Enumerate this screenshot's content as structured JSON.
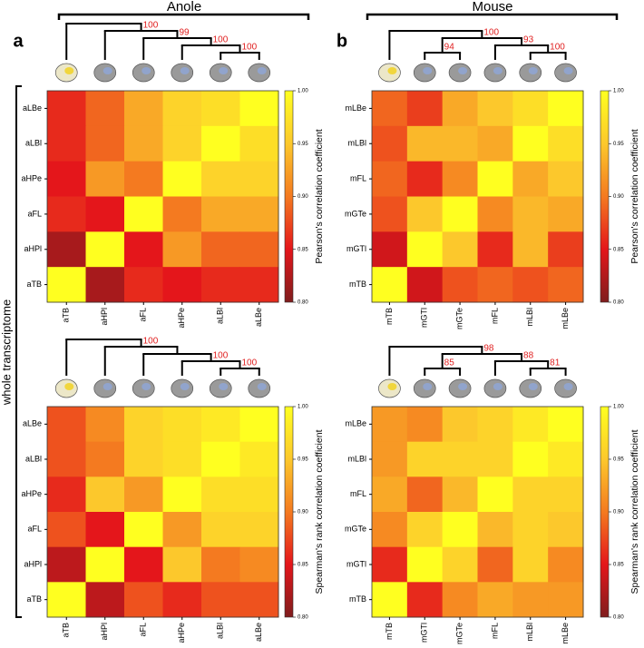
{
  "panels": [
    {
      "letter": "a",
      "title": "Anole"
    },
    {
      "letter": "b",
      "title": "Mouse"
    }
  ],
  "row_label": "whole transcriptome",
  "chart_data": [
    {
      "type": "heatmap",
      "x": [
        "aTB",
        "aHPl",
        "aFL",
        "aHPe",
        "aLBl",
        "aLBe"
      ],
      "y": [
        "aLBe",
        "aLBl",
        "aHPe",
        "aFL",
        "aHPl",
        "aTB"
      ],
      "values": [
        [
          0.86,
          0.89,
          0.93,
          0.96,
          0.97,
          1.0
        ],
        [
          0.86,
          0.89,
          0.93,
          0.96,
          1.0,
          0.97
        ],
        [
          0.85,
          0.92,
          0.9,
          1.0,
          0.96,
          0.96
        ],
        [
          0.86,
          0.85,
          1.0,
          0.9,
          0.93,
          0.93
        ],
        [
          0.82,
          1.0,
          0.85,
          0.92,
          0.89,
          0.89
        ],
        [
          1.0,
          0.82,
          0.86,
          0.85,
          0.86,
          0.86
        ]
      ],
      "zlim": [
        0.8,
        1.0
      ],
      "zticks": [
        {
          "value": 0.8,
          "label": "0.80"
        },
        {
          "value": 0.85,
          "label": "0.85"
        },
        {
          "value": 0.9,
          "label": "0.90"
        },
        {
          "value": 0.95,
          "label": "0.95"
        },
        {
          "value": 1.0,
          "label": "1.00"
        }
      ],
      "colormap": [
        "#7f1d1d",
        "#e4161b",
        "#f47a20",
        "#fcc82c",
        "#ffff20"
      ],
      "colorbar_label": "Pearson's correlation coefficient",
      "tree_support": [
        100,
        99,
        100,
        100
      ]
    },
    {
      "type": "heatmap",
      "x": [
        "mTB",
        "mGTl",
        "mGTe",
        "mFL",
        "mLBl",
        "mLBe"
      ],
      "y": [
        "mLBe",
        "mLBl",
        "mFL",
        "mGTe",
        "mGTl",
        "mTB"
      ],
      "values": [
        [
          0.89,
          0.87,
          0.93,
          0.95,
          0.97,
          1.0
        ],
        [
          0.88,
          0.94,
          0.94,
          0.93,
          1.0,
          0.97
        ],
        [
          0.89,
          0.86,
          0.91,
          1.0,
          0.93,
          0.95
        ],
        [
          0.88,
          0.95,
          1.0,
          0.91,
          0.94,
          0.93
        ],
        [
          0.84,
          1.0,
          0.95,
          0.86,
          0.94,
          0.87
        ],
        [
          1.0,
          0.84,
          0.88,
          0.89,
          0.88,
          0.89
        ]
      ],
      "zlim": [
        0.8,
        1.0
      ],
      "zticks": [
        {
          "value": 0.8,
          "label": "0.80"
        },
        {
          "value": 0.85,
          "label": "0.85"
        },
        {
          "value": 0.9,
          "label": "0.90"
        },
        {
          "value": 0.95,
          "label": "0.95"
        },
        {
          "value": 1.0,
          "label": "1.00"
        }
      ],
      "colormap": [
        "#7f1d1d",
        "#e4161b",
        "#f47a20",
        "#fcc82c",
        "#ffff20"
      ],
      "colorbar_label": "Pearson's correlation coefficient",
      "tree_support": [
        94,
        100,
        93,
        100
      ]
    },
    {
      "type": "heatmap",
      "x": [
        "aTB",
        "aHPl",
        "aFL",
        "aHPe",
        "aLBl",
        "aLBe"
      ],
      "y": [
        "aLBe",
        "aLBl",
        "aHPe",
        "aFL",
        "aHPl",
        "aTB"
      ],
      "values": [
        [
          0.88,
          0.91,
          0.96,
          0.97,
          0.98,
          1.0
        ],
        [
          0.88,
          0.9,
          0.96,
          0.97,
          1.0,
          0.98
        ],
        [
          0.86,
          0.95,
          0.92,
          1.0,
          0.97,
          0.97
        ],
        [
          0.88,
          0.85,
          1.0,
          0.92,
          0.96,
          0.96
        ],
        [
          0.83,
          1.0,
          0.85,
          0.95,
          0.9,
          0.91
        ],
        [
          1.0,
          0.83,
          0.88,
          0.86,
          0.88,
          0.88
        ]
      ],
      "zlim": [
        0.8,
        1.0
      ],
      "zticks": [
        {
          "value": 0.8,
          "label": "0.80"
        },
        {
          "value": 0.85,
          "label": "0.85"
        },
        {
          "value": 0.9,
          "label": "0.90"
        },
        {
          "value": 0.95,
          "label": "0.95"
        },
        {
          "value": 1.0,
          "label": "1.00"
        }
      ],
      "colormap": [
        "#7f1d1d",
        "#e4161b",
        "#f47a20",
        "#fcc82c",
        "#ffff20"
      ],
      "colorbar_label": "Spearman's rank correlation coefficient",
      "tree_support": [
        100,
        100,
        100
      ]
    },
    {
      "type": "heatmap",
      "x": [
        "mTB",
        "mGTl",
        "mGTe",
        "mFL",
        "mLBl",
        "mLBe"
      ],
      "y": [
        "mLBe",
        "mLBl",
        "mFL",
        "mGTe",
        "mGTl",
        "mTB"
      ],
      "values": [
        [
          0.92,
          0.91,
          0.95,
          0.96,
          0.98,
          1.0
        ],
        [
          0.92,
          0.96,
          0.96,
          0.96,
          1.0,
          0.98
        ],
        [
          0.93,
          0.89,
          0.94,
          1.0,
          0.96,
          0.96
        ],
        [
          0.91,
          0.96,
          1.0,
          0.94,
          0.96,
          0.95
        ],
        [
          0.86,
          1.0,
          0.96,
          0.89,
          0.96,
          0.91
        ],
        [
          1.0,
          0.86,
          0.91,
          0.93,
          0.92,
          0.92
        ]
      ],
      "zlim": [
        0.8,
        1.0
      ],
      "zticks": [
        {
          "value": 0.8,
          "label": "0.80"
        },
        {
          "value": 0.85,
          "label": "0.85"
        },
        {
          "value": 0.9,
          "label": "0.90"
        },
        {
          "value": 0.95,
          "label": "0.95"
        },
        {
          "value": 1.0,
          "label": "1.00"
        }
      ],
      "colormap": [
        "#7f1d1d",
        "#e4161b",
        "#f47a20",
        "#fcc82c",
        "#ffff20"
      ],
      "colorbar_label": "Spearman's rank correlation coefficient",
      "tree_support": [
        85,
        98,
        88,
        81
      ]
    }
  ]
}
